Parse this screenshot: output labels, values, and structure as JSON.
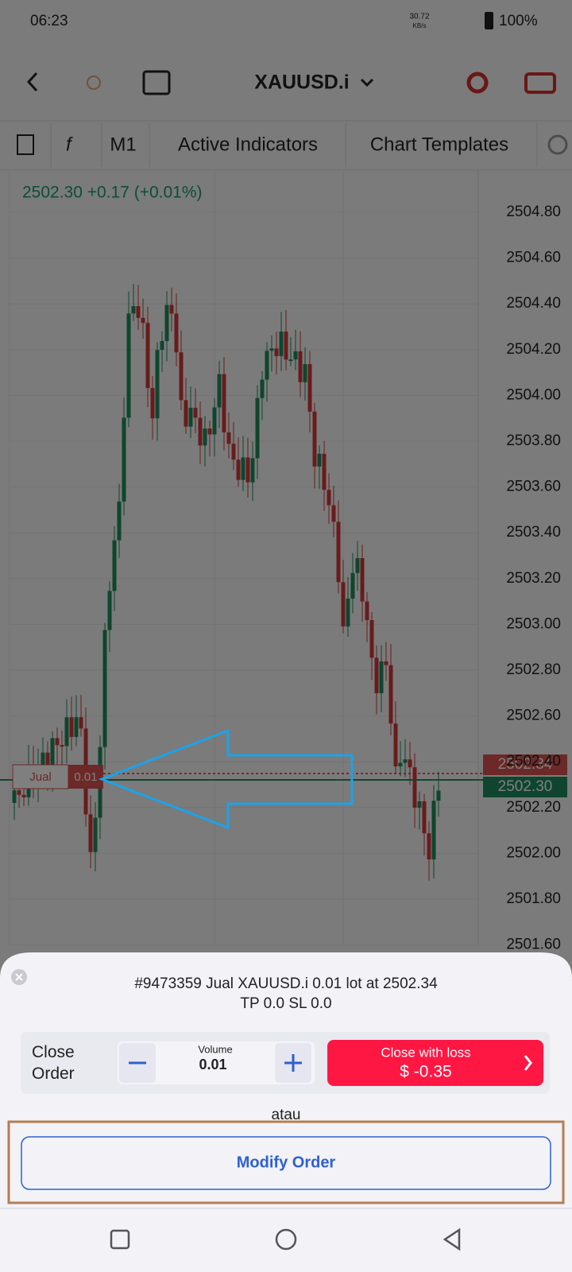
{
  "status_bar": {
    "time": "06:23",
    "net_speed": "30.72",
    "net_unit": "KB/s",
    "battery": "100%"
  },
  "header": {
    "symbol": "XAUUSD.i"
  },
  "toolbar": {
    "timeframe": "M1",
    "indicators": "Active Indicators",
    "templates": "Chart Templates"
  },
  "chart": {
    "quote": "2502.30 +0.17 (+0.01%)",
    "price_labels": [
      "2504.80",
      "2504.60",
      "2504.40",
      "2504.20",
      "2504.00",
      "2503.80",
      "2503.60",
      "2503.40",
      "2503.20",
      "2503.00",
      "2502.80",
      "2502.60",
      "2502.40",
      "2502.20",
      "2502.00",
      "2501.80",
      "2501.60"
    ],
    "ask_tag": "2502.34",
    "bid_tag": "2502.30",
    "order_tag": {
      "side": "Jual",
      "volume": "0.01"
    }
  },
  "panel": {
    "order_line": "#9473359 Jual XAUUSD.i 0.01 lot at 2502.34",
    "tp_sl": "TP 0.0 SL 0.0",
    "close_label": "Close Order",
    "volume_label": "Volume",
    "volume": "0.01",
    "close_button": {
      "title": "Close with loss",
      "amount": "$ -0.35"
    },
    "or": "atau",
    "modify_button": "Modify Order"
  }
}
